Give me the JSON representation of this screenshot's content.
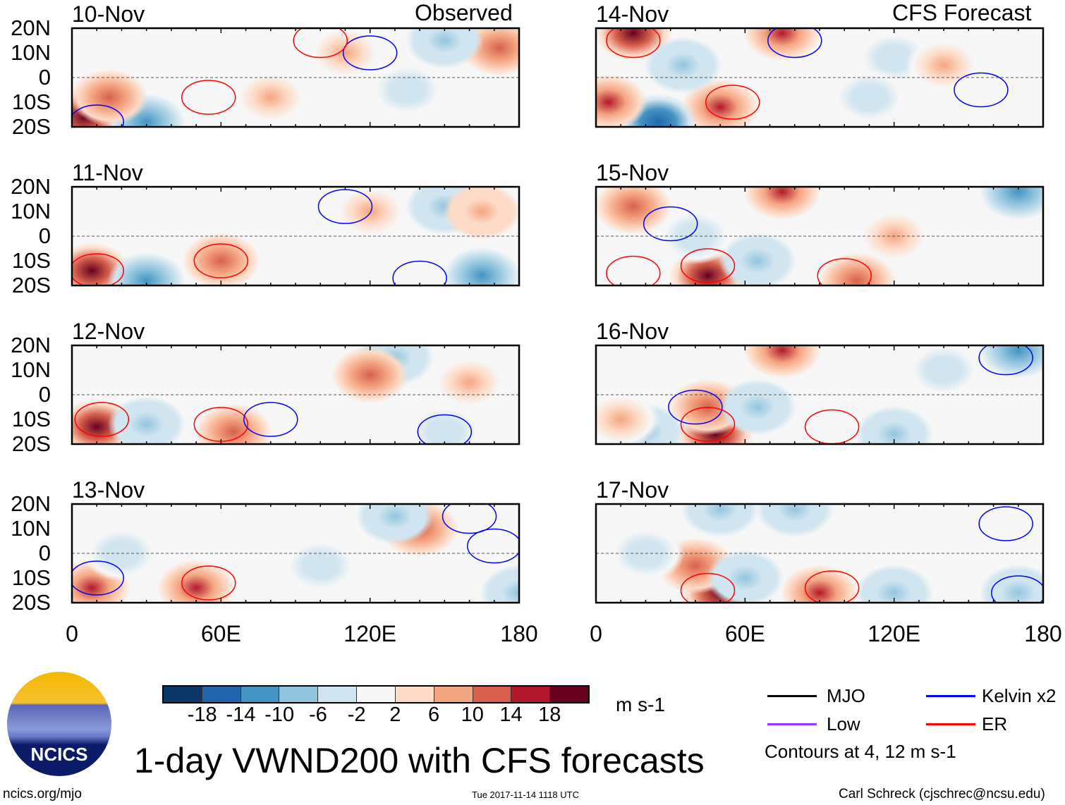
{
  "chart_data": {
    "type": "heatmap",
    "title": "1-day VWND200 with CFS forecasts",
    "units": "m s-1",
    "xlim": [
      0,
      180
    ],
    "ylim": [
      -20,
      20
    ],
    "x_ticks": [
      "0",
      "60E",
      "120E",
      "180"
    ],
    "x_tick_values": [
      0,
      60,
      120,
      180
    ],
    "y_ticks": [
      "20N",
      "10N",
      "0",
      "10S",
      "20S"
    ],
    "column_titles": [
      "Observed",
      "CFS Forecast"
    ],
    "colorbar": {
      "levels": [
        "-18",
        "-14",
        "-10",
        "-6",
        "-2",
        "2",
        "6",
        "10",
        "14",
        "18"
      ],
      "colors": [
        "#0b3769",
        "#2166ac",
        "#4393c3",
        "#92c5de",
        "#d1e5f0",
        "#f7f7f7",
        "#fddbc7",
        "#f4a582",
        "#d6604d",
        "#b2182b",
        "#67001f"
      ]
    },
    "panels": [
      {
        "date": "10-Nov",
        "features": [
          [
            5,
            -16,
            18
          ],
          [
            30,
            -18,
            -14
          ],
          [
            15,
            -8,
            10
          ],
          [
            172,
            12,
            10
          ],
          [
            135,
            -5,
            -6
          ],
          [
            150,
            15,
            -10
          ],
          [
            80,
            -8,
            6
          ],
          [
            110,
            10,
            6
          ]
        ],
        "contours": [
          [
            10,
            -18,
            "#0000ff"
          ],
          [
            55,
            -8,
            "#ff0000"
          ],
          [
            120,
            10,
            "#0000ff"
          ],
          [
            100,
            15,
            "#ff0000"
          ]
        ]
      },
      {
        "date": "11-Nov",
        "features": [
          [
            8,
            -14,
            18
          ],
          [
            30,
            -18,
            -14
          ],
          [
            60,
            -10,
            10
          ],
          [
            165,
            -16,
            -14
          ],
          [
            150,
            12,
            -10
          ],
          [
            165,
            10,
            8
          ],
          [
            120,
            10,
            6
          ]
        ],
        "contours": [
          [
            10,
            -14,
            "#ff0000"
          ],
          [
            60,
            -10,
            "#ff0000"
          ],
          [
            110,
            12,
            "#0000ff"
          ],
          [
            140,
            -17,
            "#0000ff"
          ]
        ]
      },
      {
        "date": "12-Nov",
        "features": [
          [
            10,
            -13,
            18
          ],
          [
            30,
            -12,
            -10
          ],
          [
            65,
            -15,
            10
          ],
          [
            130,
            15,
            -10
          ],
          [
            120,
            8,
            10
          ],
          [
            160,
            5,
            6
          ],
          [
            150,
            -15,
            -6
          ]
        ],
        "contours": [
          [
            12,
            -10,
            "#ff0000"
          ],
          [
            60,
            -12,
            "#ff0000"
          ],
          [
            80,
            -10,
            "#0000ff"
          ],
          [
            150,
            -15,
            "#0000ff"
          ]
        ]
      },
      {
        "date": "13-Nov",
        "features": [
          [
            8,
            -14,
            14
          ],
          [
            50,
            -14,
            14
          ],
          [
            140,
            10,
            10
          ],
          [
            20,
            0,
            -6
          ],
          [
            100,
            -5,
            -6
          ],
          [
            180,
            -16,
            -10
          ],
          [
            130,
            15,
            -10
          ]
        ],
        "contours": [
          [
            10,
            -10,
            "#0000ff"
          ],
          [
            55,
            -12,
            "#ff0000"
          ],
          [
            170,
            3,
            "#0000ff"
          ],
          [
            160,
            15,
            "#0000ff"
          ]
        ]
      },
      {
        "date": "14-Nov",
        "features": [
          [
            15,
            18,
            18
          ],
          [
            75,
            18,
            14
          ],
          [
            50,
            -12,
            14
          ],
          [
            25,
            -18,
            -18
          ],
          [
            5,
            -10,
            14
          ],
          [
            35,
            5,
            -10
          ],
          [
            120,
            8,
            -6
          ],
          [
            140,
            5,
            6
          ],
          [
            110,
            -8,
            -6
          ]
        ],
        "contours": [
          [
            15,
            15,
            "#ff0000"
          ],
          [
            55,
            -10,
            "#ff0000"
          ],
          [
            80,
            15,
            "#0000ff"
          ],
          [
            155,
            -5,
            "#0000ff"
          ]
        ]
      },
      {
        "date": "15-Nov",
        "features": [
          [
            45,
            -16,
            18
          ],
          [
            15,
            12,
            10
          ],
          [
            75,
            18,
            14
          ],
          [
            65,
            -10,
            -10
          ],
          [
            170,
            18,
            -14
          ],
          [
            40,
            0,
            -6
          ],
          [
            120,
            0,
            6
          ],
          [
            105,
            -18,
            10
          ]
        ],
        "contours": [
          [
            45,
            -12,
            "#ff0000"
          ],
          [
            15,
            -15,
            "#ff0000"
          ],
          [
            100,
            -16,
            "#ff0000"
          ],
          [
            30,
            5,
            "#0000ff"
          ]
        ]
      },
      {
        "date": "16-Nov",
        "features": [
          [
            48,
            -16,
            18
          ],
          [
            75,
            18,
            14
          ],
          [
            45,
            -5,
            10
          ],
          [
            20,
            -15,
            -10
          ],
          [
            65,
            -5,
            -10
          ],
          [
            170,
            18,
            -14
          ],
          [
            140,
            10,
            -6
          ],
          [
            120,
            -16,
            -10
          ],
          [
            10,
            -10,
            6
          ]
        ],
        "contours": [
          [
            45,
            -12,
            "#ff0000"
          ],
          [
            95,
            -13,
            "#ff0000"
          ],
          [
            165,
            15,
            "#0000ff"
          ],
          [
            40,
            -5,
            "#0000ff"
          ]
        ]
      },
      {
        "date": "17-Nov",
        "features": [
          [
            50,
            -16,
            18
          ],
          [
            90,
            -16,
            14
          ],
          [
            40,
            -5,
            10
          ],
          [
            60,
            -10,
            -10
          ],
          [
            50,
            18,
            -10
          ],
          [
            80,
            18,
            -10
          ],
          [
            120,
            -16,
            -10
          ],
          [
            170,
            -16,
            -10
          ],
          [
            20,
            0,
            -6
          ]
        ],
        "contours": [
          [
            45,
            -15,
            "#ff0000"
          ],
          [
            95,
            -14,
            "#ff0000"
          ],
          [
            165,
            12,
            "#0000ff"
          ],
          [
            170,
            -16,
            "#0000ff"
          ]
        ]
      }
    ],
    "legend": [
      {
        "label": "MJO",
        "color": "#000000"
      },
      {
        "label": "Kelvin x2",
        "color": "#0000ff"
      },
      {
        "label": "Low",
        "color": "#9933ff"
      },
      {
        "label": "ER",
        "color": "#ff0000"
      }
    ],
    "contour_note": "Contours at 4, 12 m s-1"
  },
  "logo_text": "NCICS",
  "footer": {
    "url": "ncics.org/mjo",
    "timestamp": "Tue 2017-11-14 1118 UTC",
    "credit": "Carl Schreck (cjschrec@ncsu.edu)"
  }
}
